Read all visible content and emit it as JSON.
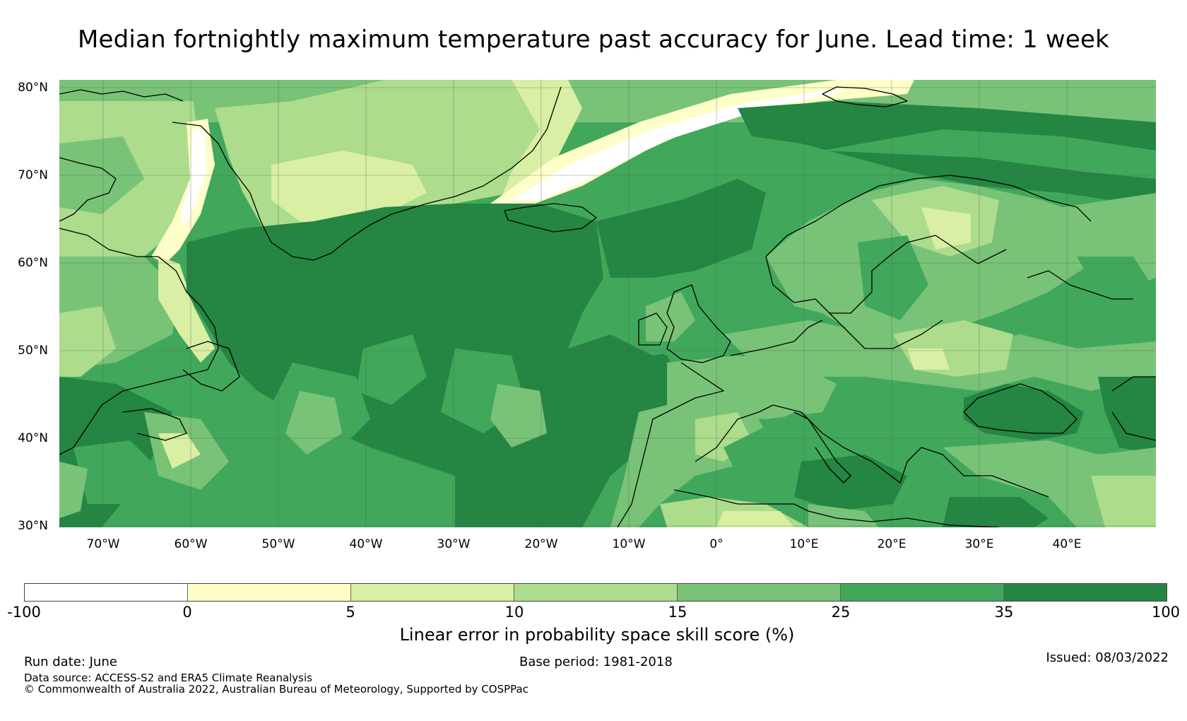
{
  "title": "Median fortnightly maximum temperature past accuracy for June. Lead time: 1 week",
  "map": {
    "projection": "PlateCarree",
    "lon_range": [
      -75,
      50
    ],
    "lat_range": [
      30,
      81
    ],
    "lat_ticks": [
      {
        "value": 80,
        "label": "80°N"
      },
      {
        "value": 70,
        "label": "70°N"
      },
      {
        "value": 60,
        "label": "60°N"
      },
      {
        "value": 50,
        "label": "50°N"
      },
      {
        "value": 40,
        "label": "40°N"
      },
      {
        "value": 30,
        "label": "30°N"
      }
    ],
    "lon_ticks": [
      {
        "value": -70,
        "label": "70°W"
      },
      {
        "value": -60,
        "label": "60°W"
      },
      {
        "value": -50,
        "label": "50°W"
      },
      {
        "value": -40,
        "label": "40°W"
      },
      {
        "value": -30,
        "label": "30°W"
      },
      {
        "value": -20,
        "label": "20°W"
      },
      {
        "value": -10,
        "label": "10°W"
      },
      {
        "value": 0,
        "label": "0°"
      },
      {
        "value": 10,
        "label": "10°E"
      },
      {
        "value": 20,
        "label": "20°E"
      },
      {
        "value": 30,
        "label": "30°E"
      },
      {
        "value": 40,
        "label": "40°E"
      }
    ],
    "gridlines": true,
    "coastline_color": "#000000",
    "fill_colors": {
      "dark": "#258543",
      "mid": "#41a85b",
      "light": "#78c378",
      "pale": "#acdc8c",
      "paler": "#d9efa3",
      "cream": "#fefec8",
      "white": "#ffffff"
    }
  },
  "colorbar": {
    "label": "Linear error in probability space skill score (%)",
    "bins": [
      {
        "from": -100,
        "to": 0,
        "color": "#ffffff"
      },
      {
        "from": 0,
        "to": 5,
        "color": "#fefec8"
      },
      {
        "from": 5,
        "to": 10,
        "color": "#d9efa3"
      },
      {
        "from": 10,
        "to": 15,
        "color": "#acdc8c"
      },
      {
        "from": 15,
        "to": 25,
        "color": "#78c378"
      },
      {
        "from": 25,
        "to": 35,
        "color": "#41a85b"
      },
      {
        "from": 35,
        "to": 100,
        "color": "#258543"
      }
    ],
    "ticks": [
      "-100",
      "0",
      "5",
      "10",
      "15",
      "25",
      "35",
      "100"
    ]
  },
  "footer": {
    "run_date": "Run date: June",
    "base_period": "Base period: 1981-2018",
    "issued": "Issued: 08/03/2022",
    "data_source": "Data source: ACCESS-S2 and ERA5 Climate Reanalysis",
    "copyright": "© Commonwealth of Australia 2022, Australian Bureau of Meteorology, Supported by COSPPac"
  }
}
